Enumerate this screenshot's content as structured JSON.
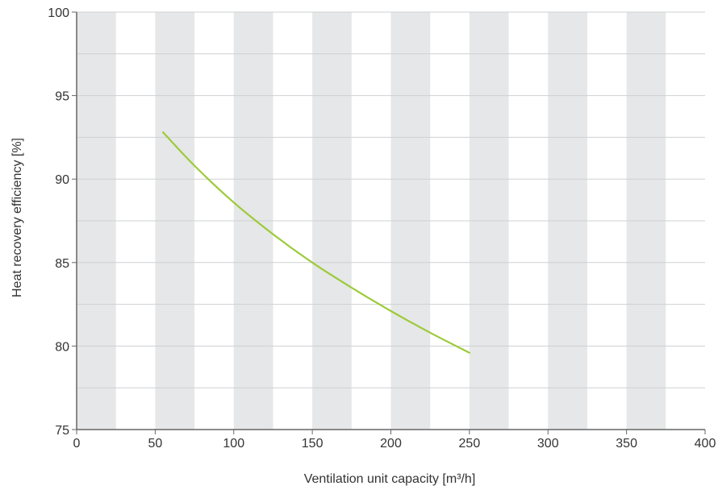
{
  "chart_data": {
    "type": "line",
    "title": "",
    "xlabel": "Ventilation unit capacity [m³/h]",
    "ylabel": "Heat recovery efficiency [%]",
    "xlim": [
      0,
      400
    ],
    "ylim": [
      75,
      100
    ],
    "x_ticks": [
      0,
      50,
      100,
      150,
      200,
      250,
      300,
      350,
      400
    ],
    "y_ticks": [
      75,
      80,
      85,
      90,
      95,
      100
    ],
    "x_tick_labels": [
      "0",
      "50",
      "100",
      "150",
      "200",
      "250",
      "300",
      "350",
      "400"
    ],
    "y_tick_labels": [
      "75",
      "80",
      "85",
      "90",
      "95",
      "100"
    ],
    "grid": true,
    "background_bands": "alternating grey vertical bands every 25 m³/h",
    "band_color": "#e6e7e8",
    "series": [
      {
        "color": "#9ccb3b",
        "x": [
          55,
          75,
          100,
          125,
          150,
          175,
          200,
          225,
          250
        ],
        "y": [
          92.8,
          90.8,
          88.6,
          86.7,
          85.0,
          83.5,
          82.1,
          80.8,
          79.6
        ]
      }
    ]
  }
}
